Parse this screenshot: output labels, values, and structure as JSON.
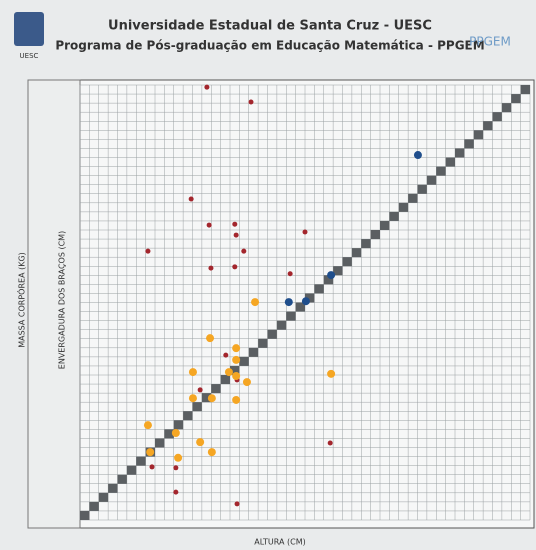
{
  "chart_data": {
    "type": "scatter",
    "title": "Universidade Estadual de Santa Cruz - UESC",
    "subtitle": "Programa de Pós-graduação em Educação Matemática - PPGEM",
    "logo_left": "UESC",
    "logo_right": "PPGEM",
    "xlabel": "ALTURA (CM)",
    "ylabel": "ENVERGADURA DOS BRAÇOS (CM)",
    "ylabel2": "MASSA CORPÓREA (KG)",
    "xlim": [
      0,
      100
    ],
    "ylim": [
      0,
      100
    ],
    "series": [
      {
        "color": "#a3262d",
        "x": [
          28.2,
          38.0,
          24.7,
          15.1,
          28.7,
          34.4,
          34.7,
          36.4,
          29.1,
          34.4,
          46.7,
          50.0,
          32.4,
          26.7,
          34.9,
          55.6,
          16.0,
          21.3,
          21.3,
          34.9
        ],
        "values": [
          99.5,
          96.1,
          73.8,
          61.8,
          67.8,
          68.0,
          65.5,
          61.8,
          57.9,
          58.2,
          56.6,
          66.2,
          37.9,
          29.9,
          32.2,
          17.7,
          12.2,
          12.0,
          6.4,
          3.7
        ]
      },
      {
        "color": "#f5a623",
        "x": [
          38.9,
          28.9,
          34.7,
          34.7,
          33.1,
          25.1,
          34.7,
          37.1,
          25.1,
          29.3,
          34.7,
          55.8,
          21.3,
          15.1,
          15.6,
          21.8,
          26.7,
          29.3
        ],
        "values": [
          50.1,
          41.8,
          39.5,
          36.8,
          34.0,
          34.0,
          33.1,
          31.7,
          28.0,
          28.0,
          27.6,
          33.6,
          20.0,
          21.8,
          15.6,
          14.3,
          17.9,
          15.6
        ]
      },
      {
        "color": "#1f4e8c",
        "x": [
          75.1,
          55.8,
          50.2,
          46.4
        ],
        "values": [
          83.9,
          56.3,
          50.3,
          50.1
        ]
      }
    ]
  }
}
